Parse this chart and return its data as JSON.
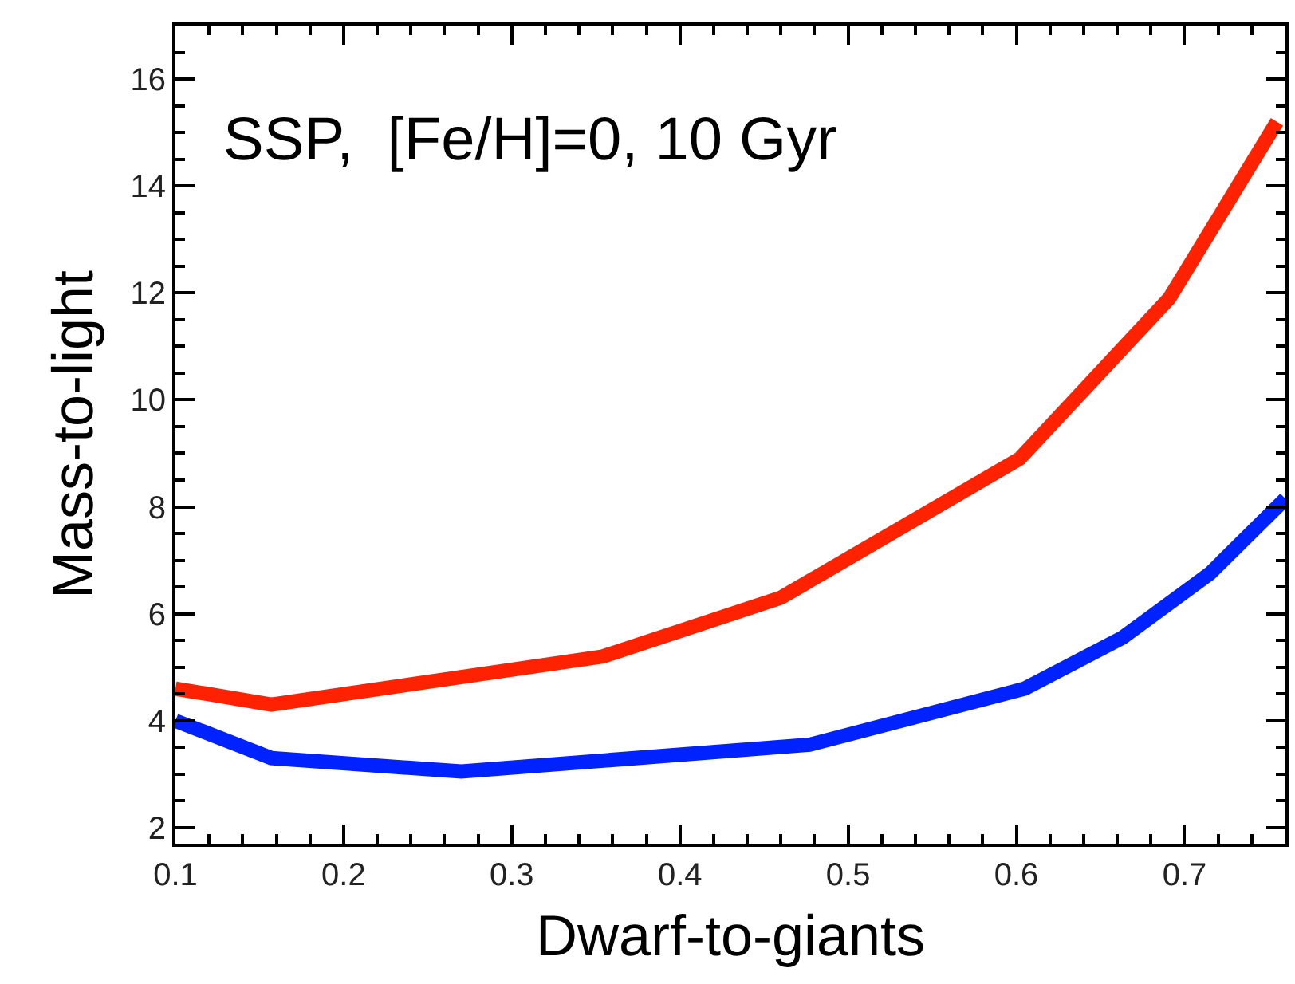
{
  "chart_data": {
    "type": "line",
    "xlabel": "Dwarf-to-giants",
    "ylabel": "Mass-to-light",
    "annotations": [
      "SSP,  [Fe/H]=0, 10 Gyr"
    ],
    "xlim": [
      0.1,
      0.76
    ],
    "ylim": [
      1.7,
      17
    ],
    "xticks": [
      0.1,
      0.2,
      0.3,
      0.4,
      0.5,
      0.6,
      0.7
    ],
    "yticks": [
      2,
      4,
      6,
      8,
      10,
      12,
      14,
      16
    ],
    "legend": false,
    "marker": "none",
    "line_style": "solid",
    "series": [
      {
        "color": "#ff2200",
        "x": [
          0.1,
          0.157,
          0.354,
          0.46,
          0.602,
          0.691,
          0.755
        ],
        "values": [
          4.6,
          4.3,
          5.2,
          6.3,
          8.9,
          11.9,
          15.2
        ]
      },
      {
        "color": "#0022ff",
        "x": [
          0.1,
          0.157,
          0.27,
          0.477,
          0.605,
          0.663,
          0.715,
          0.76
        ],
        "values": [
          4.0,
          3.3,
          3.05,
          3.55,
          4.6,
          5.55,
          6.75,
          8.15
        ]
      }
    ]
  }
}
